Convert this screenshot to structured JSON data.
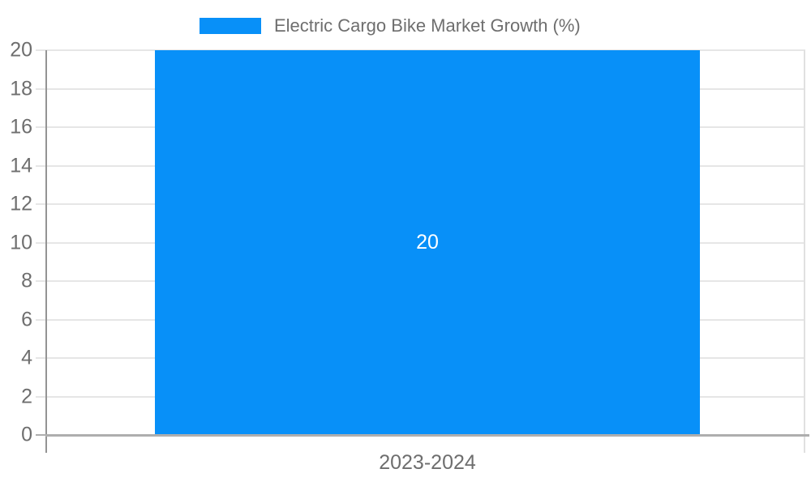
{
  "legend": {
    "label": "Electric Cargo Bike Market Growth (%)"
  },
  "chart_data": {
    "type": "bar",
    "title": "Electric Cargo Bike Market Growth (%)",
    "categories": [
      "2023-2024"
    ],
    "values": [
      20
    ],
    "bar_label": "20",
    "xlabel": "",
    "ylabel": "",
    "ylim": [
      0,
      20
    ],
    "yticks": [
      0,
      2,
      4,
      6,
      8,
      10,
      12,
      14,
      16,
      18,
      20
    ],
    "grid": true,
    "legend_position": "top"
  },
  "colors": {
    "bar": "#0890f8",
    "grid": "#e6e6e6",
    "edge": "#e0e0e0",
    "axis": "#949494",
    "baseline": "#aeaeae",
    "text": "#6e6e6e",
    "bar_label": "#ffffff"
  }
}
